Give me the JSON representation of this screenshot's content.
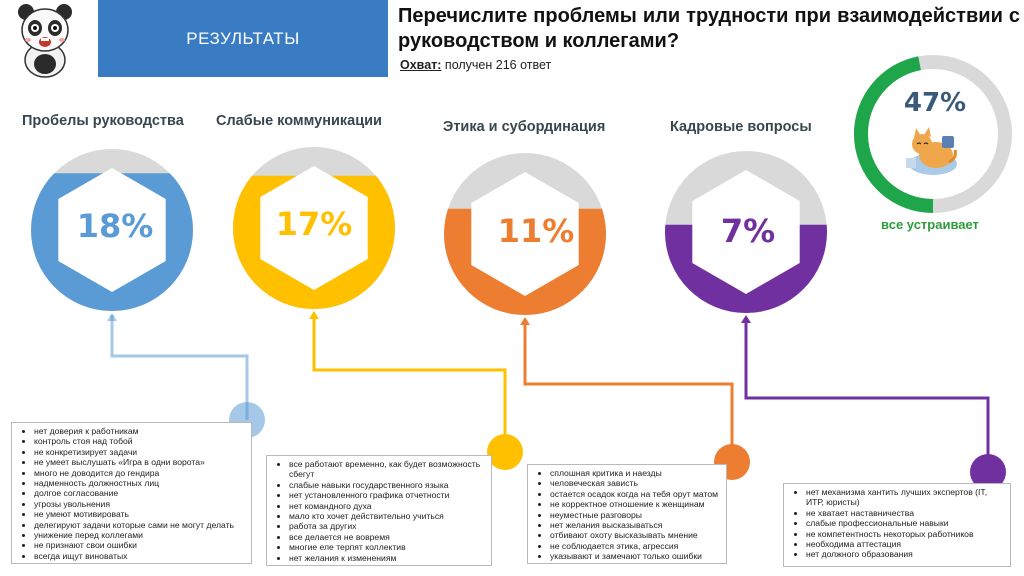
{
  "header": {
    "banner_label": "РЕЗУЛЬТАТЫ",
    "title": "Перечислите проблемы или трудности при взаимодействии с руководством и коллегами?",
    "reach_label": "Охват:",
    "reach_value": "получен 216 ответ"
  },
  "chart_data": {
    "type": "donut",
    "categories": [
      "Пробелы руководства",
      "Слабые коммуникации",
      "Этика и субординация",
      "Кадровые вопросы"
    ],
    "values": [
      18,
      17,
      11,
      7
    ],
    "labels": [
      "18%",
      "17%",
      "11%",
      "7%"
    ],
    "colors": [
      "#5b9bd5",
      "#ffc000",
      "#ed7d31",
      "#7030a0"
    ],
    "track_color": "#d9d9d9",
    "satisfied": {
      "value": 47,
      "label": "47%",
      "caption": "все устраивает",
      "color": "#1fa64a"
    }
  },
  "lists": [
    {
      "items": [
        "нет доверия к работникам",
        "контроль стоя над тобой",
        "не конкретизирует задачи",
        "не умеет выслушать «Игра в одни ворота»",
        "много не доводится до гендира",
        "надменность должностных лиц",
        "долгое согласование",
        "угрозы увольнения",
        "не умеют мотивировать",
        "делегируют задачи которые сами не могут делать",
        "унижение перед коллегами",
        "не признают свои ошибки",
        "всегда ищут виноватых"
      ]
    },
    {
      "items": [
        "все работают временно, как будет возможность сбегут",
        "слабые навыки государственного языка",
        "нет установленного графика отчетности",
        "нет командного духа",
        "мало кто хочет действительно учиться",
        "работа за других",
        "все делается не вовремя",
        "многие еле терпят коллектив",
        "нет желания к изменениям"
      ]
    },
    {
      "items": [
        "сплошная критика и наезды",
        "человеческая зависть",
        "остается осадок когда на тебя орут матом",
        "не корректное отношение к женщинам",
        "неуместные разговоры",
        "нет желания высказываться",
        "отбивают охоту высказывать мнение",
        "не соблюдается этика, агрессия",
        "указывают и замечают только ошибки"
      ]
    },
    {
      "items": [
        "нет механизма хантить лучших экспертов (IT, ИТР, юристы)",
        "не хватает наставничества",
        "слабые профессиональные навыки",
        "не компетентность некоторых работников",
        "необходима аттестация",
        "нет должного образования"
      ]
    }
  ]
}
